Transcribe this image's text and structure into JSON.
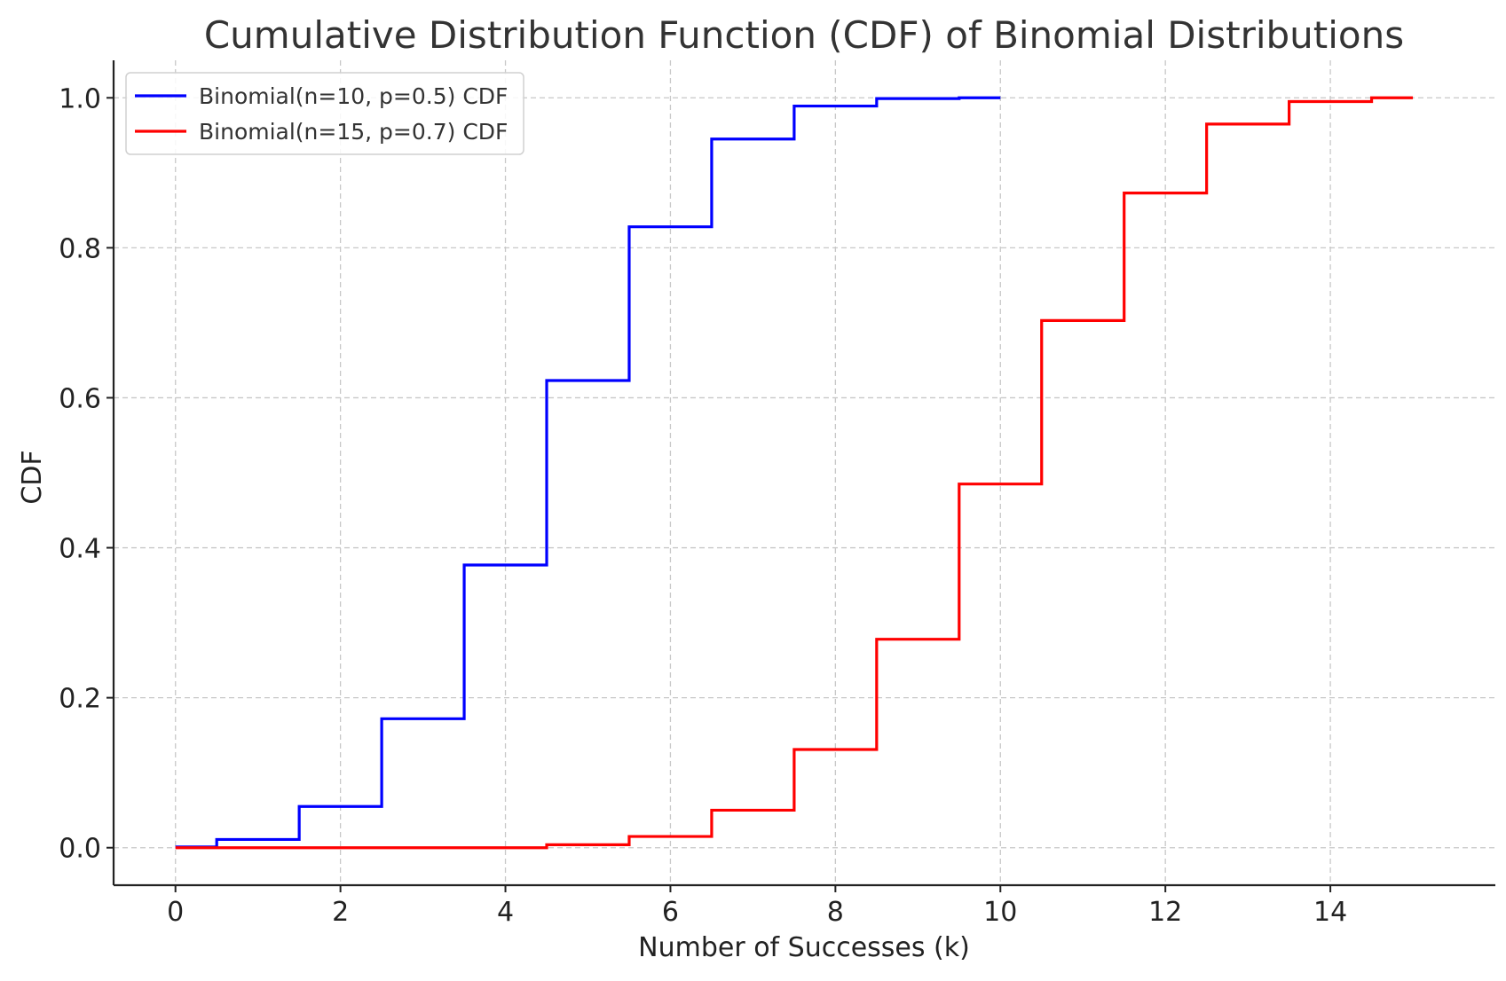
{
  "chart_data": {
    "type": "line",
    "style": "step",
    "title": "Cumulative Distribution Function (CDF) of Binomial Distributions",
    "xlabel": "Number of Successes (k)",
    "ylabel": "CDF",
    "xlim": [
      -0.75,
      16.0
    ],
    "ylim": [
      -0.05,
      1.05
    ],
    "xticks": [
      0,
      2,
      4,
      6,
      8,
      10,
      12,
      14
    ],
    "xtick_labels": [
      "0",
      "2",
      "4",
      "6",
      "8",
      "10",
      "12",
      "14"
    ],
    "yticks": [
      0.0,
      0.2,
      0.4,
      0.6,
      0.8,
      1.0
    ],
    "ytick_labels": [
      "0.0",
      "0.2",
      "0.4",
      "0.6",
      "0.8",
      "1.0"
    ],
    "grid": true,
    "legend_position": "upper left",
    "series": [
      {
        "name": "Binomial(n=10, p=0.5) CDF",
        "color": "#0000ff",
        "x": [
          0,
          1,
          2,
          3,
          4,
          5,
          6,
          7,
          8,
          9,
          10
        ],
        "values": [
          0.001,
          0.011,
          0.055,
          0.172,
          0.377,
          0.623,
          0.828,
          0.945,
          0.989,
          0.999,
          1.0
        ]
      },
      {
        "name": "Binomial(n=15, p=0.7) CDF",
        "color": "#ff0000",
        "x": [
          0,
          1,
          2,
          3,
          4,
          5,
          6,
          7,
          8,
          9,
          10,
          11,
          12,
          13,
          14,
          15
        ],
        "values": [
          0.0,
          0.0,
          0.0,
          0.0,
          0.0,
          0.004,
          0.015,
          0.05,
          0.131,
          0.278,
          0.485,
          0.703,
          0.873,
          0.965,
          0.995,
          1.0
        ]
      }
    ]
  }
}
